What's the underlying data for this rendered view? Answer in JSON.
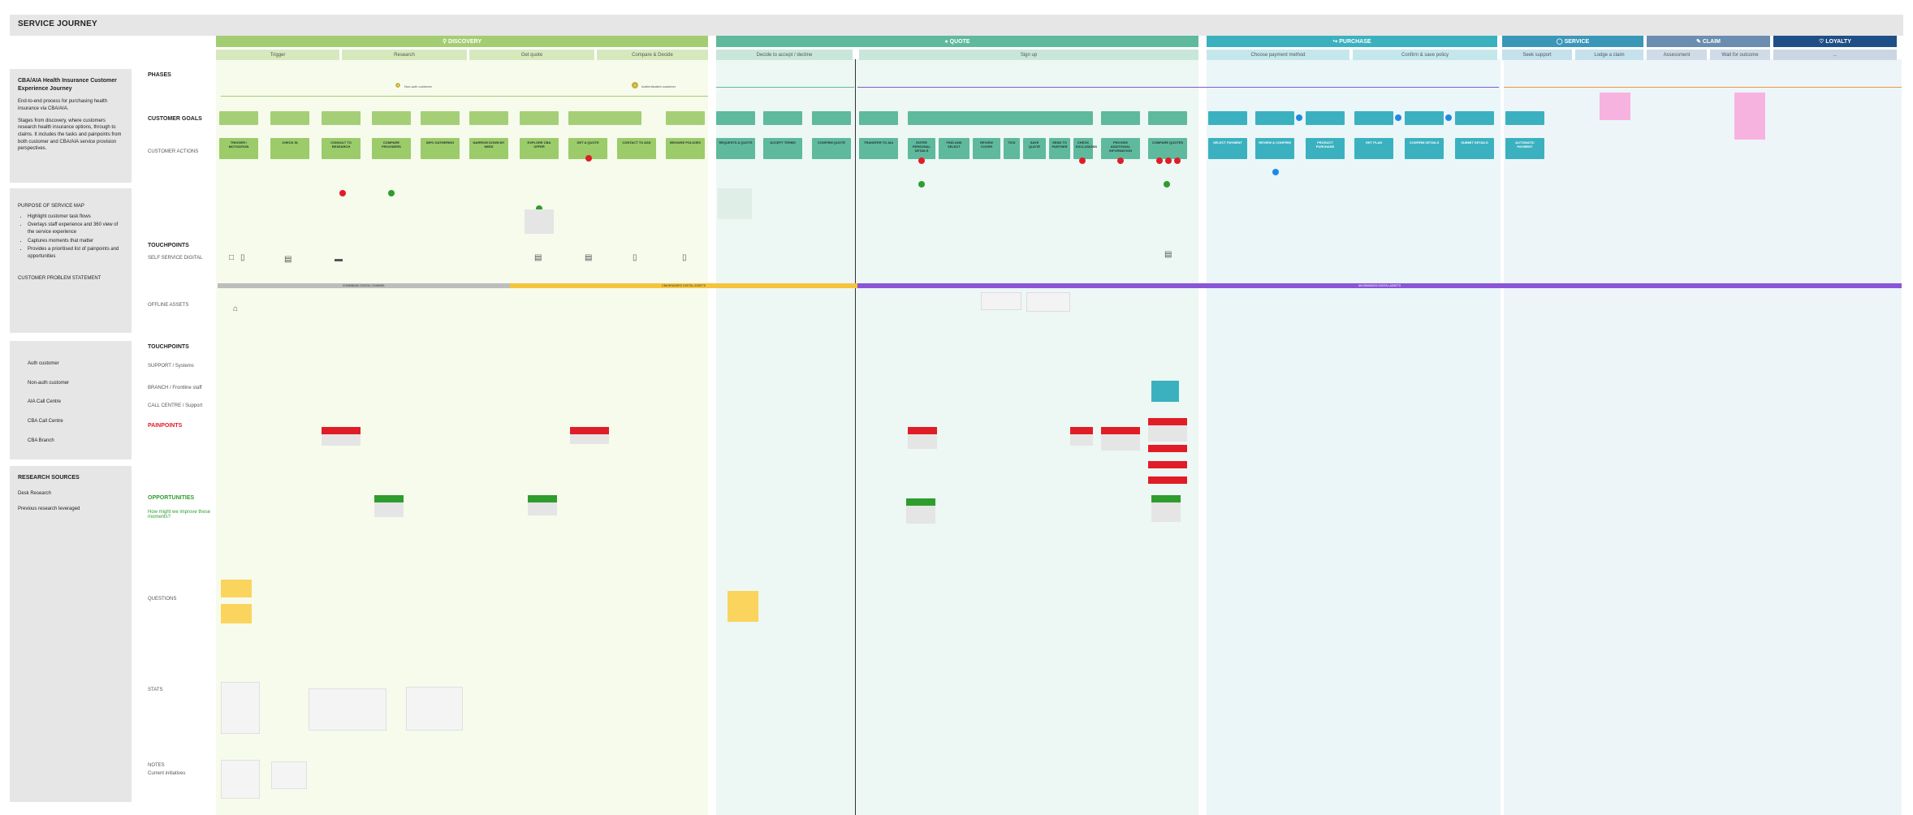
{
  "title": "SERVICE JOURNEY",
  "phases": [
    {
      "label": "DISCOVERY",
      "icon": "search-icon",
      "color": "#a3cd73"
    },
    {
      "label": "QUOTE",
      "icon": "quote-icon",
      "color": "#5fb99d"
    },
    {
      "label": "PURCHASE",
      "icon": "cart-icon",
      "color": "#3bb1c0"
    },
    {
      "label": "SERVICE",
      "icon": "person-icon",
      "color": "#3a97b8"
    },
    {
      "label": "CLAIM",
      "icon": "document-icon",
      "color": "#6a8db0"
    },
    {
      "label": "LOYALTY",
      "icon": "heart-icon",
      "color": "#1f4f86"
    }
  ],
  "subphases": {
    "discovery": [
      "Trigger",
      "Research",
      "Get quote",
      "Compare & Decide"
    ],
    "quote": [
      "Decide to accept / decline",
      "Sign up"
    ],
    "purchase": [
      "Choose payment method",
      "Confirm & save policy"
    ],
    "service": [
      "Seek support",
      "Lodge a claim"
    ],
    "claim": [
      "Assessment",
      "Wait for outcome"
    ],
    "loyalty": [
      "..."
    ]
  },
  "left_panel": {
    "intro_title": "CBA/AIA Health Insurance Customer Experience Journey",
    "intro_text_1": "End-to-end process for purchasing health insurance via CBA/AIA.",
    "intro_text_2": "Stages from discovery, where customers research health insurance options, through to claims. It includes the tasks and painpoints from both customer and CBA/AIA service provision perspectives.",
    "purpose_title": "PURPOSE OF SERVICE MAP",
    "purpose_items": [
      "Highlight customer task flows",
      "Overlays staff experience and 360 view of the service experience",
      "Captures moments that matter",
      "Provides a prioritised list of painpoints and opportunities"
    ],
    "problem_title": "CUSTOMER PROBLEM STATEMENT",
    "legend": [
      "Auth customer",
      "Non-auth customer",
      "AIA Call Centre",
      "CBA Call Centre",
      "CBA Branch"
    ],
    "research_title": "RESEARCH SOURCES",
    "research_items": [
      "Desk Research",
      "Previous research leveraged"
    ]
  },
  "row_labels": {
    "phases": "PHASES",
    "customer_goals": "CUSTOMER GOALS",
    "customer_actions": "CUSTOMER ACTIONS",
    "touchpoints_1": "TOUCHPOINTS",
    "self_service": "SELF SERVICE DIGITAL",
    "offline": "OFFLINE ASSETS",
    "touchpoints_2": "TOUCHPOINTS",
    "support": "SUPPORT / Systems",
    "branch": "BRANCH / Frontline staff",
    "call_centre": "CALL CENTRE / Support",
    "painpoints": "PAINPOINTS",
    "opportunities": "OPPORTUNITIES",
    "opp_question": "How might we improve these moments?",
    "questions": "QUESTIONS",
    "stats": "STATS",
    "notes": "NOTES",
    "current_initiatives": "Current initiatives"
  },
  "actions": {
    "discovery": [
      "TRIGGER / MOTIVATION",
      "CHECK IN",
      "CONSULT TO RESEARCH",
      "COMPARE PROVIDERS",
      "INFO GATHERING",
      "NARROW DOWN BY NEED",
      "EXPLORE CBA OFFER",
      "GET A QUOTE",
      "CONTACT TO ASK",
      "BROWSE POLICIES"
    ],
    "quote": [
      "REQUESTS A QUOTE",
      "ACCEPT TERMS",
      "CONFIRM QUOTE",
      "TRANSFER TO AIA",
      "ENTER PERSONAL DETAILS",
      "FIND AND SELECT",
      "REVIEW COVER",
      "TICK",
      "SAVE QUOTE",
      "SEND TO PARTNER",
      "CHECK EXCLUSIONS",
      "PROVIDE ADDITIONAL INFORMATION",
      "COMPARE QUOTES"
    ],
    "purchase": [
      "SELECT PAYMENT",
      "REVIEW & CONFIRM",
      "PRODUCT PURCHASE",
      "GET PLAN",
      "CONFIRM DETAILS",
      "SUBMIT DETAILS"
    ],
    "service": [
      "AUTOMATIC PAYMENT"
    ]
  },
  "stripe_labels": {
    "cba_digital": "COMMBANK DIGITAL CHANNEL",
    "cba_branded": "CBA BRANDED DIGITAL ASSETS",
    "aia_branded": "AIA BRANDED DIGITAL ASSETS"
  },
  "markers": {
    "non_auth": "Non-auth customer",
    "auth": "Authenticated customer"
  }
}
